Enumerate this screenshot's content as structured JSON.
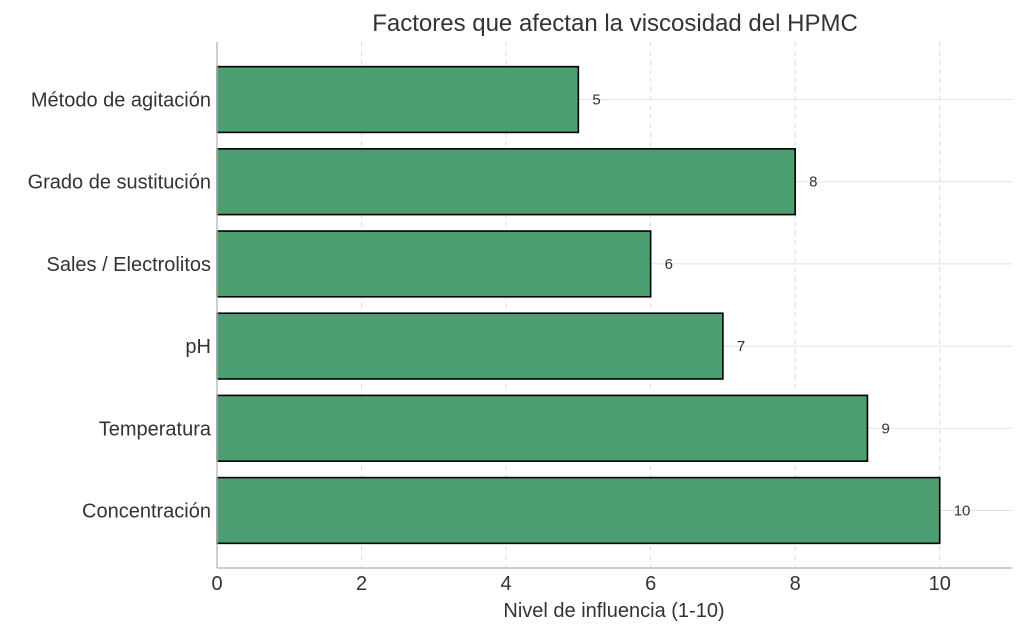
{
  "chart_data": {
    "type": "bar",
    "orientation": "horizontal",
    "title": "Factores que afectan la viscosidad del HPMC",
    "xlabel": "Nivel de influencia (1-10)",
    "ylabel": "",
    "categories": [
      "Concentración",
      "Temperatura",
      "pH",
      "Sales / Electrolitos",
      "Grado de sustitución",
      "Método de agitación"
    ],
    "values": [
      10,
      9,
      7,
      6,
      8,
      5
    ],
    "value_labels": [
      "10",
      "9",
      "7",
      "6",
      "8",
      "5"
    ],
    "xlim": [
      0,
      11
    ],
    "xticks": [
      0,
      2,
      4,
      6,
      8,
      10
    ],
    "xtick_labels": [
      "0",
      "2",
      "4",
      "6",
      "8",
      "10"
    ],
    "grid": true,
    "bar_color": "#4c9f70",
    "bar_edge_color": "#000000"
  }
}
